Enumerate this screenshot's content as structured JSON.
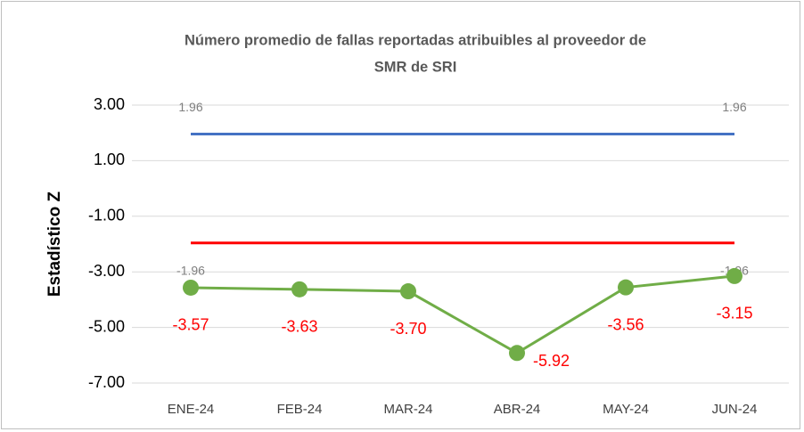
{
  "chart_data": {
    "type": "line",
    "title": [
      "Número promedio de fallas reportadas atribuibles al proveedor de",
      "SMR de SRI"
    ],
    "ylabel": "Estadístico Z",
    "categories": [
      "ENE-24",
      "FEB-24",
      "MAR-24",
      "ABR-24",
      "MAY-24",
      "JUN-24"
    ],
    "series": [
      {
        "color": "#4472c4",
        "label_color": "#7f7f7f",
        "label_position": "above",
        "marker": false,
        "values": [
          1.96,
          1.96,
          1.96,
          1.96,
          1.96,
          1.96
        ],
        "value_labels": [
          "1.96",
          null,
          null,
          null,
          null,
          "1.96"
        ]
      },
      {
        "color": "#ff0000",
        "label_color": "#7f7f7f",
        "label_position": "below",
        "marker": false,
        "values": [
          -1.96,
          -1.96,
          -1.96,
          -1.96,
          -1.96,
          -1.96
        ],
        "value_labels": [
          "-1.96",
          null,
          null,
          null,
          null,
          "-1.96"
        ]
      },
      {
        "color": "#70ad47",
        "label_color": "#ff0000",
        "label_position": "below",
        "marker": true,
        "values": [
          -3.57,
          -3.63,
          -3.7,
          -5.92,
          -3.56,
          -3.15
        ],
        "value_labels": [
          "-3.57",
          "-3.63",
          "-3.70",
          "-5.92",
          "-3.56",
          "-3.15"
        ]
      }
    ],
    "ylim": [
      -7,
      3
    ],
    "yticks": [
      {
        "value": 3,
        "label": "3.00"
      },
      {
        "value": 1,
        "label": "1.00"
      },
      {
        "value": -1,
        "label": "-1.00"
      },
      {
        "value": -3,
        "label": "-3.00"
      },
      {
        "value": -5,
        "label": "-5.00"
      },
      {
        "value": -7,
        "label": "-7.00"
      }
    ],
    "grid": true
  }
}
